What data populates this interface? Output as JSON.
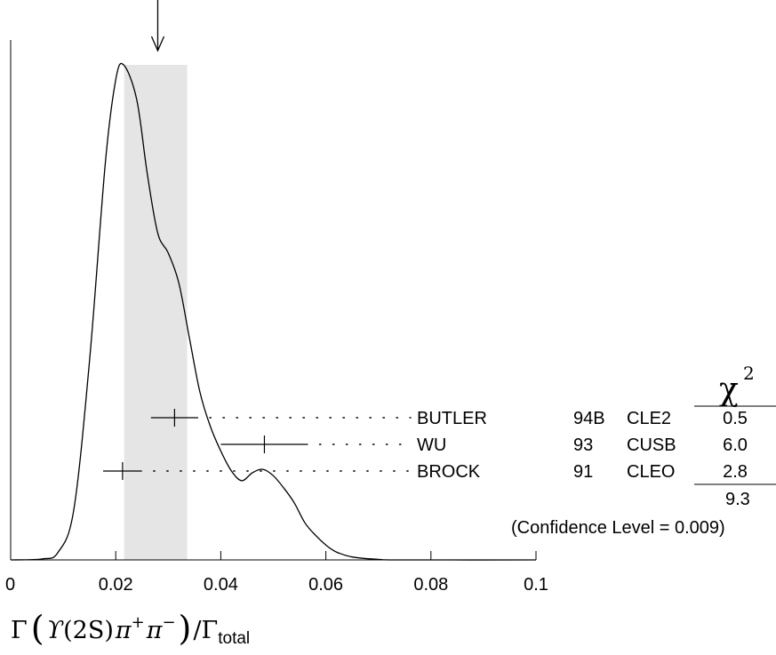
{
  "chart_data": {
    "type": "ideogram",
    "xlim": [
      0,
      0.1
    ],
    "ticks": [
      {
        "value": 0,
        "label": "0"
      },
      {
        "value": 0.02,
        "label": "0.02"
      },
      {
        "value": 0.04,
        "label": "0.04"
      },
      {
        "value": 0.06,
        "label": "0.06"
      },
      {
        "value": 0.08,
        "label": "0.08"
      },
      {
        "value": 0.1,
        "label": "0.1"
      }
    ],
    "weighted_average": 0.028,
    "average_band": [
      0.0216,
      0.0336
    ],
    "ideogram_curve": [
      [
        0.0,
        0.0
      ],
      [
        0.006,
        0.002
      ],
      [
        0.009,
        0.015
      ],
      [
        0.012,
        0.1
      ],
      [
        0.015,
        0.4
      ],
      [
        0.018,
        0.8
      ],
      [
        0.02,
        0.97
      ],
      [
        0.0215,
        1.0
      ],
      [
        0.024,
        0.93
      ],
      [
        0.026,
        0.78
      ],
      [
        0.028,
        0.66
      ],
      [
        0.03,
        0.62
      ],
      [
        0.032,
        0.56
      ],
      [
        0.034,
        0.45
      ],
      [
        0.036,
        0.34
      ],
      [
        0.038,
        0.27
      ],
      [
        0.04,
        0.22
      ],
      [
        0.042,
        0.18
      ],
      [
        0.044,
        0.16
      ],
      [
        0.046,
        0.176
      ],
      [
        0.048,
        0.183
      ],
      [
        0.05,
        0.17
      ],
      [
        0.052,
        0.145
      ],
      [
        0.054,
        0.115
      ],
      [
        0.056,
        0.075
      ],
      [
        0.058,
        0.05
      ],
      [
        0.06,
        0.03
      ],
      [
        0.062,
        0.016
      ],
      [
        0.065,
        0.006
      ],
      [
        0.07,
        0.001
      ],
      [
        0.075,
        0.0
      ],
      [
        0.1,
        0.0
      ]
    ],
    "measurements": [
      {
        "author": "BUTLER",
        "year": "94B",
        "experiment": "CLE2",
        "value": 0.0312,
        "error_low": 0.0045,
        "error_high": 0.0045,
        "chi2": "0.5"
      },
      {
        "author": "WU",
        "year": "93",
        "experiment": "CUSB",
        "value": 0.0483,
        "error_low": 0.0083,
        "error_high": 0.0083,
        "chi2": "6.0"
      },
      {
        "author": "BROCK",
        "year": "91",
        "experiment": "CLEO",
        "value": 0.0213,
        "error_low": 0.0037,
        "error_high": 0.0037,
        "chi2": "2.8"
      }
    ],
    "chi2_symbol": "χ",
    "chi2_exponent": "2",
    "chi2_total": "9.3",
    "confidence_text": "(Confidence Level = 0.009)",
    "xlabel": {
      "gamma": "Γ",
      "upsilon": "ϒ",
      "state": "(2S)",
      "pi": "π",
      "plus": "+",
      "minus": "−",
      "slash": "/Γ",
      "total": "total"
    }
  }
}
